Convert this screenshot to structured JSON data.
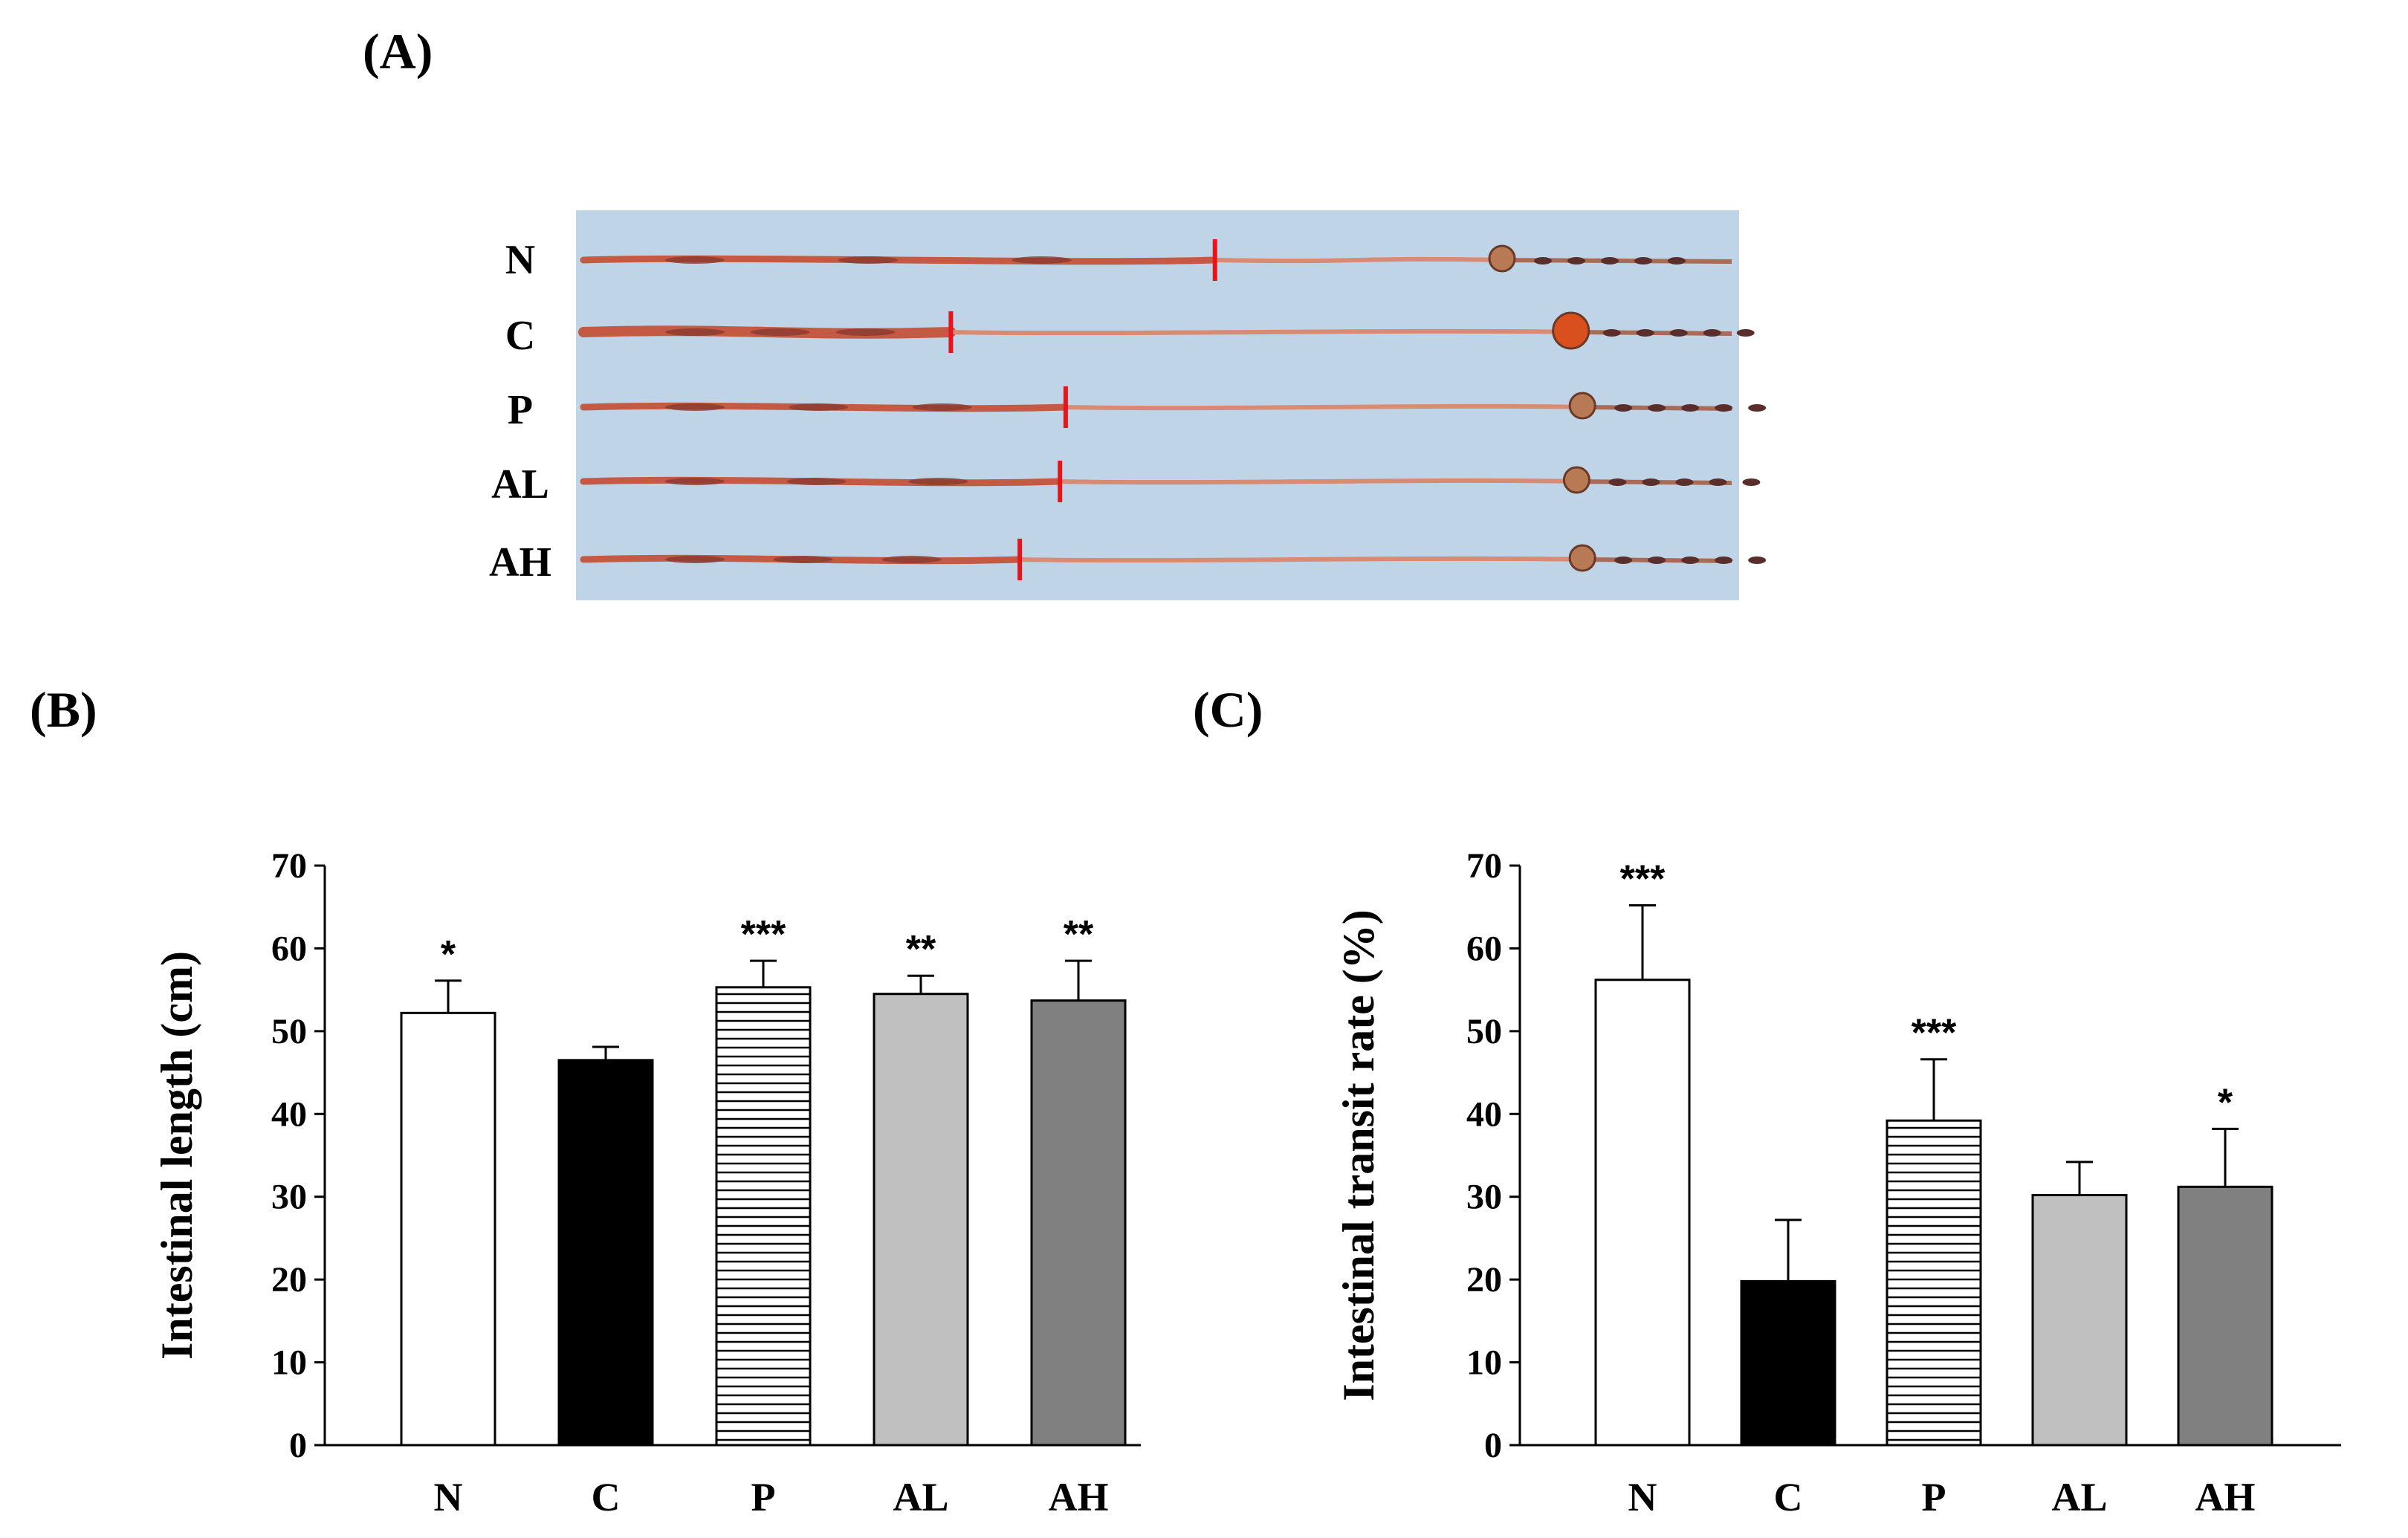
{
  "panels": {
    "a": {
      "letter": "(A)",
      "rows": [
        "N",
        "C",
        "P",
        "AL",
        "AH"
      ]
    },
    "b": {
      "letter": "(B)"
    },
    "c": {
      "letter": "(C)"
    }
  },
  "photo": {
    "background": "#bfd4e6",
    "marker_color": "#e8141b",
    "tissue_color": "#c45a43",
    "dark_color": "#5a2e2a",
    "marker_fraction": [
      0.55,
      0.32,
      0.42,
      0.415,
      0.38
    ],
    "cecum_fraction": [
      0.8,
      0.86,
      0.87,
      0.865,
      0.87
    ]
  },
  "chart_data": [
    {
      "type": "bar",
      "id": "B",
      "categories": [
        "N",
        "C",
        "P",
        "AL",
        "AH"
      ],
      "values": [
        52.2,
        46.5,
        55.3,
        54.5,
        53.7
      ],
      "errors": [
        3.9,
        1.6,
        3.2,
        2.2,
        4.8
      ],
      "significance": [
        "*",
        "",
        "***",
        "**",
        "**"
      ],
      "fills": [
        "#ffffff",
        "#000000",
        "hatch",
        "#c0c0c0",
        "#808080"
      ],
      "ylabel": "Intestinal  length (cm)",
      "ylim": [
        0,
        70
      ],
      "yticks": [
        "0",
        "10",
        "20",
        "30",
        "40",
        "50",
        "60",
        "70"
      ]
    },
    {
      "type": "bar",
      "id": "C",
      "categories": [
        "N",
        "C",
        "P",
        "AL",
        "AH"
      ],
      "values": [
        56.2,
        19.8,
        39.2,
        30.2,
        31.2
      ],
      "errors": [
        9.0,
        7.4,
        7.4,
        4.0,
        7.0
      ],
      "significance": [
        "***",
        "",
        "***",
        "",
        "*"
      ],
      "fills": [
        "#ffffff",
        "#000000",
        "hatch",
        "#c0c0c0",
        "#808080"
      ],
      "ylabel": "Intestinal transit rate (%)",
      "ylim": [
        0,
        70
      ],
      "yticks": [
        "0",
        "10",
        "20",
        "30",
        "40",
        "50",
        "60",
        "70"
      ]
    }
  ]
}
